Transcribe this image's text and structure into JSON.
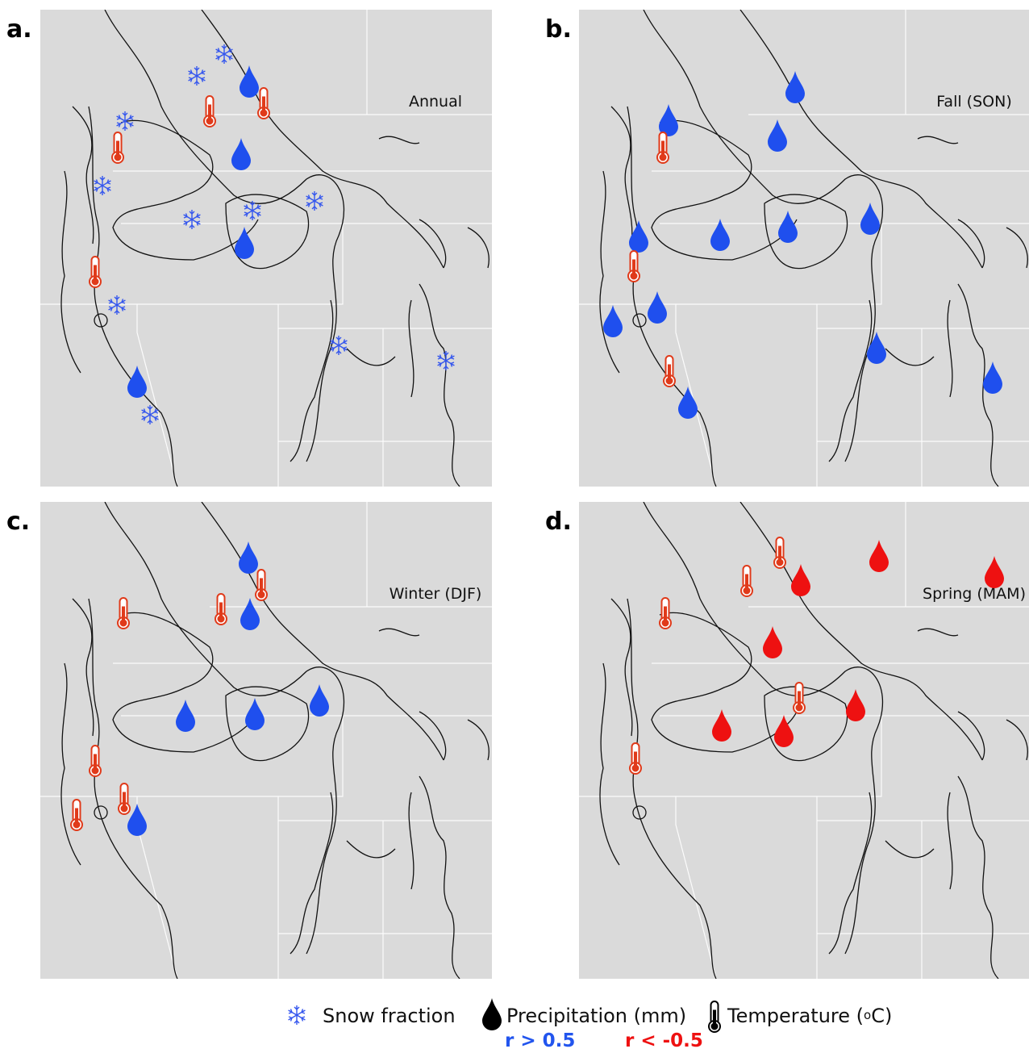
{
  "panels": [
    {
      "label": "a.",
      "season": "Annual"
    },
    {
      "label": "b.",
      "season": "Fall (SON)"
    },
    {
      "label": "c.",
      "season": "Winter (DJF)"
    },
    {
      "label": "d.",
      "season": "Spring (MAM)"
    }
  ],
  "legend": {
    "snow": "Snow fraction",
    "precipitation": "Precipitation (mm)",
    "temperature_start": "Temperature (",
    "temperature_sup": "o",
    "temperature_end": "C)",
    "positive": "r > 0.5",
    "negative": "r < -0.5"
  }
}
